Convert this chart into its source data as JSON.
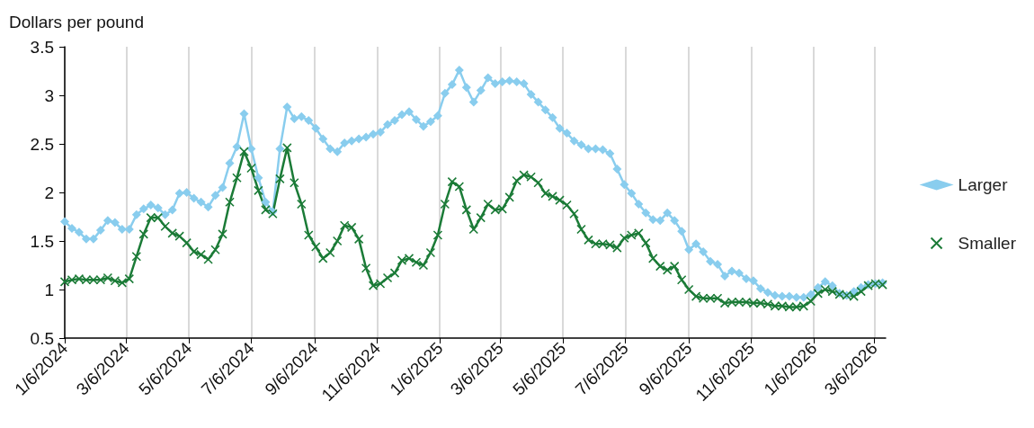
{
  "chart_data": {
    "type": "line",
    "ylabel": "Dollars per pound",
    "x": [
      "2024-01-06",
      "2024-01-13",
      "2024-01-20",
      "2024-01-27",
      "2024-02-03",
      "2024-02-10",
      "2024-02-17",
      "2024-02-24",
      "2024-03-02",
      "2024-03-09",
      "2024-03-16",
      "2024-03-23",
      "2024-03-30",
      "2024-04-06",
      "2024-04-13",
      "2024-04-20",
      "2024-04-27",
      "2024-05-04",
      "2024-05-11",
      "2024-05-18",
      "2024-05-25",
      "2024-06-01",
      "2024-06-08",
      "2024-06-15",
      "2024-06-22",
      "2024-06-29",
      "2024-07-06",
      "2024-07-13",
      "2024-07-20",
      "2024-07-27",
      "2024-08-03",
      "2024-08-10",
      "2024-08-17",
      "2024-08-24",
      "2024-08-31",
      "2024-09-07",
      "2024-09-14",
      "2024-09-21",
      "2024-09-28",
      "2024-10-05",
      "2024-10-12",
      "2024-10-19",
      "2024-10-26",
      "2024-11-02",
      "2024-11-09",
      "2024-11-16",
      "2024-11-23",
      "2024-11-30",
      "2024-12-07",
      "2024-12-14",
      "2024-12-21",
      "2024-12-28",
      "2025-01-04",
      "2025-01-11",
      "2025-01-18",
      "2025-01-25",
      "2025-02-01",
      "2025-02-08",
      "2025-02-15",
      "2025-02-22",
      "2025-03-01",
      "2025-03-08",
      "2025-03-15",
      "2025-03-22",
      "2025-03-29",
      "2025-04-05",
      "2025-04-12",
      "2025-04-19",
      "2025-04-26",
      "2025-05-03",
      "2025-05-10",
      "2025-05-17",
      "2025-05-24",
      "2025-05-31",
      "2025-06-07",
      "2025-06-14",
      "2025-06-21",
      "2025-06-28",
      "2025-07-05",
      "2025-07-12",
      "2025-07-19",
      "2025-07-26",
      "2025-08-02",
      "2025-08-09",
      "2025-08-16",
      "2025-08-23",
      "2025-08-30",
      "2025-09-06",
      "2025-09-13",
      "2025-09-20",
      "2025-09-27",
      "2025-10-04",
      "2025-10-11",
      "2025-10-18",
      "2025-10-25",
      "2025-11-01",
      "2025-11-08",
      "2025-11-15",
      "2025-11-22",
      "2025-11-29",
      "2025-12-06",
      "2025-12-13",
      "2025-12-20",
      "2025-12-27",
      "2026-01-03",
      "2026-01-10",
      "2026-01-17",
      "2026-01-24",
      "2026-01-31",
      "2026-02-07",
      "2026-02-14",
      "2026-02-21",
      "2026-02-28",
      "2026-03-07",
      "2026-03-14"
    ],
    "series": [
      {
        "name": "Larger",
        "color": "#89cdee",
        "marker": "diamond",
        "values": [
          1.7,
          1.63,
          1.59,
          1.52,
          1.52,
          1.61,
          1.71,
          1.69,
          1.62,
          1.62,
          1.77,
          1.83,
          1.87,
          1.84,
          1.77,
          1.82,
          1.99,
          2.0,
          1.94,
          1.9,
          1.85,
          1.97,
          2.05,
          2.3,
          2.47,
          2.81,
          2.45,
          2.15,
          1.9,
          1.8,
          2.45,
          2.88,
          2.76,
          2.78,
          2.74,
          2.66,
          2.55,
          2.45,
          2.42,
          2.51,
          2.53,
          2.55,
          2.57,
          2.6,
          2.62,
          2.7,
          2.74,
          2.8,
          2.83,
          2.75,
          2.68,
          2.73,
          2.79,
          3.02,
          3.11,
          3.26,
          3.08,
          2.93,
          3.05,
          3.18,
          3.12,
          3.14,
          3.15,
          3.14,
          3.12,
          3.01,
          2.93,
          2.85,
          2.77,
          2.66,
          2.61,
          2.53,
          2.49,
          2.45,
          2.45,
          2.44,
          2.4,
          2.24,
          2.08,
          1.99,
          1.88,
          1.79,
          1.72,
          1.71,
          1.79,
          1.71,
          1.6,
          1.41,
          1.47,
          1.39,
          1.29,
          1.26,
          1.14,
          1.19,
          1.17,
          1.11,
          1.09,
          1.01,
          0.97,
          0.94,
          0.93,
          0.93,
          0.92,
          0.92,
          0.95,
          1.02,
          1.08,
          1.04,
          0.96,
          0.94,
          0.98,
          1.02,
          1.05,
          1.06,
          1.07
        ]
      },
      {
        "name": "Smaller",
        "color": "#1b7b37",
        "marker": "cross",
        "values": [
          1.08,
          1.1,
          1.11,
          1.1,
          1.1,
          1.1,
          1.12,
          1.09,
          1.07,
          1.11,
          1.34,
          1.57,
          1.74,
          1.74,
          1.65,
          1.58,
          1.55,
          1.48,
          1.39,
          1.36,
          1.31,
          1.41,
          1.57,
          1.9,
          2.15,
          2.42,
          2.25,
          2.02,
          1.82,
          1.78,
          2.14,
          2.46,
          2.1,
          1.88,
          1.56,
          1.44,
          1.32,
          1.38,
          1.5,
          1.66,
          1.64,
          1.52,
          1.22,
          1.04,
          1.06,
          1.12,
          1.17,
          1.3,
          1.32,
          1.28,
          1.25,
          1.38,
          1.56,
          1.88,
          2.11,
          2.06,
          1.82,
          1.62,
          1.74,
          1.88,
          1.82,
          1.83,
          1.95,
          2.12,
          2.18,
          2.16,
          2.1,
          1.99,
          1.96,
          1.92,
          1.87,
          1.78,
          1.62,
          1.51,
          1.47,
          1.47,
          1.46,
          1.43,
          1.53,
          1.56,
          1.58,
          1.48,
          1.32,
          1.24,
          1.2,
          1.24,
          1.1,
          1.0,
          0.93,
          0.91,
          0.91,
          0.91,
          0.86,
          0.87,
          0.87,
          0.87,
          0.86,
          0.86,
          0.85,
          0.83,
          0.83,
          0.82,
          0.82,
          0.83,
          0.88,
          0.96,
          1.0,
          0.98,
          0.95,
          0.94,
          0.93,
          0.98,
          1.04,
          1.06,
          1.05
        ]
      }
    ],
    "xlim": [
      "2024-01-06",
      "2026-03-17"
    ],
    "xticks": [
      {
        "value": "2024-01-06",
        "label": "1/6/2024"
      },
      {
        "value": "2024-03-06",
        "label": "3/6/2024"
      },
      {
        "value": "2024-05-06",
        "label": "5/6/2024"
      },
      {
        "value": "2024-07-06",
        "label": "7/6/2024"
      },
      {
        "value": "2024-09-06",
        "label": "9/6/2024"
      },
      {
        "value": "2024-11-06",
        "label": "11/6/2024"
      },
      {
        "value": "2025-01-06",
        "label": "1/6/2025"
      },
      {
        "value": "2025-03-06",
        "label": "3/6/2025"
      },
      {
        "value": "2025-05-06",
        "label": "5/6/2025"
      },
      {
        "value": "2025-07-06",
        "label": "7/6/2025"
      },
      {
        "value": "2025-09-06",
        "label": "9/6/2025"
      },
      {
        "value": "2025-11-06",
        "label": "11/6/2025"
      },
      {
        "value": "2026-01-06",
        "label": "1/6/2026"
      },
      {
        "value": "2026-03-06",
        "label": "3/6/2026"
      }
    ],
    "ylim": [
      0.5,
      3.5
    ],
    "yticks": [
      0.5,
      1,
      1.5,
      2,
      2.5,
      3,
      3.5
    ],
    "grid": "x",
    "legend": "right",
    "line_style": "solid"
  }
}
